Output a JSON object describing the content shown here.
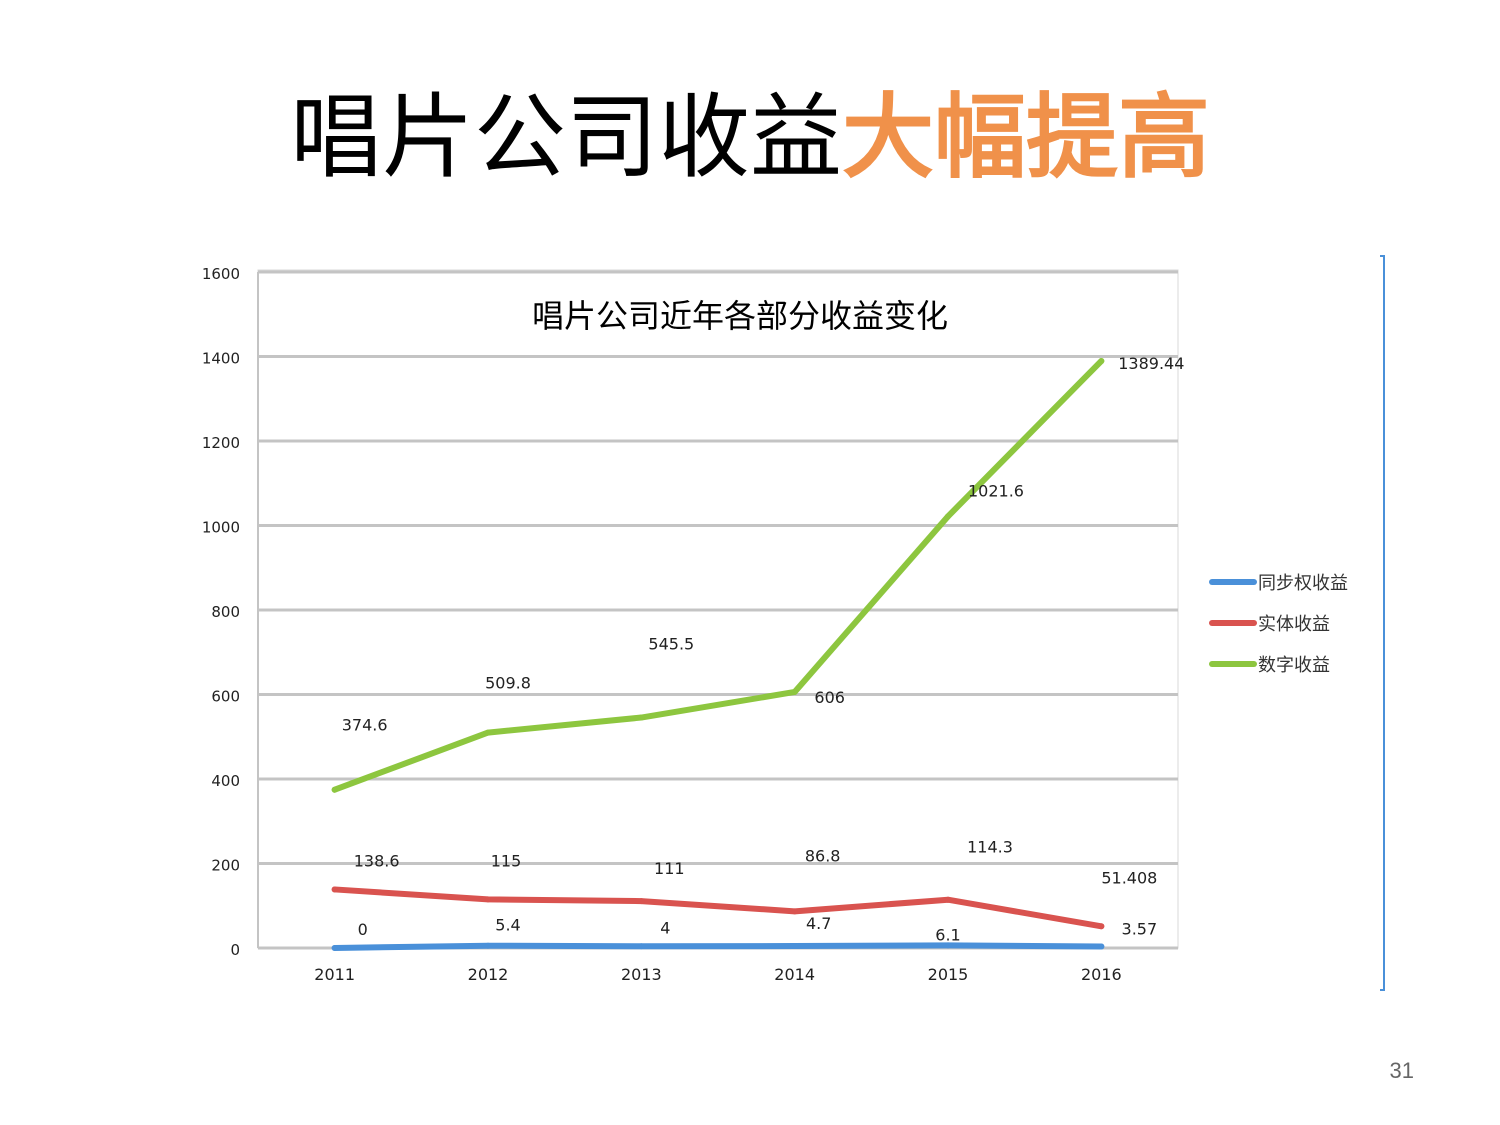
{
  "slide": {
    "title_part1": "唱片公司收益",
    "title_part2": "大幅提高",
    "title_highlight_color": "#F0914A",
    "page_number": "31"
  },
  "chart_data": {
    "type": "line",
    "title": "唱片公司近年各部分收益变化",
    "categories": [
      "2011",
      "2012",
      "2013",
      "2014",
      "2015",
      "2016"
    ],
    "ylim": [
      0,
      1600
    ],
    "yticks": [
      "0",
      "200",
      "400",
      "600",
      "800",
      "1000",
      "1200",
      "1400",
      "1600"
    ],
    "grid": true,
    "legend_position": "right",
    "series": [
      {
        "name": "同步权收益",
        "color": "#4A90D9",
        "values": [
          0,
          5.4,
          4,
          4.7,
          6.1,
          3.57
        ],
        "labels": [
          "0",
          "5.4",
          "4",
          "4.7",
          "6.1",
          "3.57"
        ]
      },
      {
        "name": "实体收益",
        "color": "#D9534F",
        "values": [
          138.6,
          115,
          111,
          86.8,
          114.3,
          51.408
        ],
        "labels": [
          "138.6",
          "115",
          "111",
          "86.8",
          "114.3",
          "51.408"
        ]
      },
      {
        "name": "数字收益",
        "color": "#8DC63F",
        "values": [
          374.6,
          509.8,
          545.5,
          606,
          1021.6,
          1389.44
        ],
        "labels": [
          "374.6",
          "509.8",
          "545.5",
          "606",
          "1021.6",
          "1389.44"
        ]
      }
    ]
  }
}
